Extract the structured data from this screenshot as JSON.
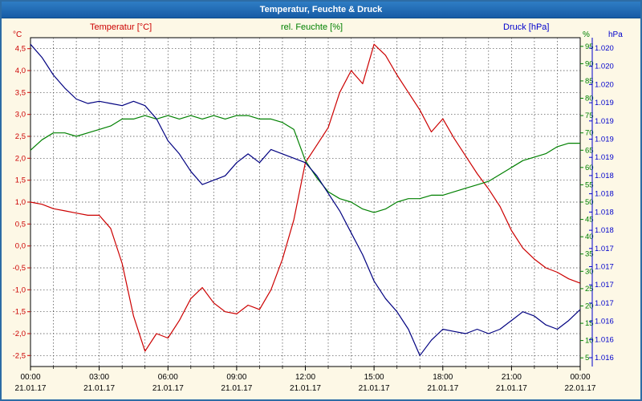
{
  "window": {
    "title": "Temperatur, Feuchte & Druck"
  },
  "legend": {
    "temp": "Temperatur [°C]",
    "hum": "rel. Feuchte [%]",
    "press": "Druck [hPa]"
  },
  "colors": {
    "titlebar": "#1e6cb5",
    "background": "#fdf8e6",
    "border": "#2d6ca5",
    "temp": "#cc0000",
    "hum": "#008000",
    "press": "#000080"
  },
  "chart_data": {
    "type": "line",
    "title": "Temperatur, Feuchte & Druck",
    "legend_position": "top",
    "grid": {
      "horizontal": true,
      "vertical_every_hours": 1,
      "style": "dashed"
    },
    "x_hours": [
      0,
      0.5,
      1,
      1.5,
      2,
      2.5,
      3,
      3.5,
      4,
      4.5,
      5,
      5.5,
      6,
      6.5,
      7,
      7.5,
      8,
      8.5,
      9,
      9.5,
      10,
      10.5,
      11,
      11.5,
      12,
      12.5,
      13,
      13.5,
      14,
      14.5,
      15,
      15.5,
      16,
      16.5,
      17,
      17.5,
      18,
      18.5,
      19,
      19.5,
      20,
      20.5,
      21,
      21.5,
      22,
      22.5,
      23,
      23.5,
      24
    ],
    "x_tick_labels": [
      "00:00",
      "03:00",
      "06:00",
      "09:00",
      "12:00",
      "15:00",
      "18:00",
      "21:00",
      "00:00"
    ],
    "x_tick_dates": [
      "21.01.17",
      "21.01.17",
      "21.01.17",
      "21.01.17",
      "21.01.17",
      "21.01.17",
      "21.01.17",
      "21.01.17",
      "22.01.17"
    ],
    "axes": {
      "temp": {
        "label": "Temperatur [°C]",
        "unit": "°C",
        "color": "#cc0000",
        "min": -2.75,
        "max": 4.75,
        "tick_values": [
          4.5,
          4.0,
          3.5,
          3.0,
          2.5,
          2.0,
          1.5,
          1.0,
          0.5,
          0.0,
          -0.5,
          -1.0,
          -1.5,
          -2.0,
          -2.5
        ],
        "tick_labels": [
          "4,5",
          "4,0",
          "3,5",
          "3,0",
          "2,5",
          "2,0",
          "1,5",
          "1,0",
          "0,5",
          "0,0",
          "-0,5",
          "-1,0",
          "-1,5",
          "-2,0",
          "-2,5"
        ]
      },
      "hum": {
        "label": "rel. Feuchte [%]",
        "unit": "%",
        "color": "#008000",
        "min": 2.5,
        "max": 97.5,
        "tick_values": [
          95,
          90,
          85,
          80,
          75,
          70,
          65,
          60,
          55,
          50,
          45,
          40,
          35,
          30,
          25,
          20,
          15,
          10,
          5
        ],
        "tick_labels": [
          "95",
          "90",
          "85",
          "80",
          "75",
          "70",
          "65",
          "60",
          "55",
          "50",
          "45",
          "40",
          "35",
          "30",
          "25",
          "20",
          "15",
          "10",
          "5"
        ]
      },
      "press": {
        "label": "Druck [hPa]",
        "unit": "hPa",
        "color": "#0000cc",
        "min": 1.016,
        "max": 1.0205,
        "tick_labels": [
          "1.020",
          "1.020",
          "1.020",
          "1.019",
          "1.019",
          "1.019",
          "1.019",
          "1.018",
          "1.018",
          "1.018",
          "1.018",
          "1.017",
          "1.017",
          "1.017",
          "1.017",
          "1.016",
          "1.016",
          "1.016"
        ]
      }
    },
    "series": [
      {
        "key": "temperature",
        "name": "Temperatur [°C]",
        "axis": "temp",
        "color": "#cc0000",
        "values": [
          1.0,
          0.95,
          0.85,
          0.8,
          0.75,
          0.7,
          0.7,
          0.4,
          -0.4,
          -1.6,
          -2.4,
          -2.0,
          -2.1,
          -1.7,
          -1.2,
          -0.95,
          -1.3,
          -1.5,
          -1.55,
          -1.35,
          -1.45,
          -1.0,
          -0.3,
          0.6,
          1.9,
          2.3,
          2.7,
          3.5,
          4.0,
          3.7,
          4.6,
          4.35,
          3.9,
          3.5,
          3.1,
          2.6,
          2.9,
          2.45,
          2.05,
          1.65,
          1.3,
          0.9,
          0.35,
          -0.05,
          -0.3,
          -0.5,
          -0.6,
          -0.75,
          -0.85
        ]
      },
      {
        "key": "humidity",
        "name": "rel. Feuchte [%]",
        "axis": "hum",
        "color": "#008000",
        "values": [
          65,
          68,
          70,
          70,
          69,
          70,
          71,
          72,
          74,
          74,
          75,
          74,
          75,
          74,
          75,
          74,
          75,
          74,
          75,
          75,
          74,
          74,
          73,
          71,
          62,
          57,
          53,
          51,
          50,
          48,
          47,
          48,
          50,
          51,
          51,
          52,
          52,
          53,
          54,
          55,
          56,
          58,
          60,
          62,
          63,
          64,
          66,
          67,
          67
        ]
      },
      {
        "key": "pressure",
        "name": "Druck [hPa]",
        "axis": "press",
        "color": "#000080",
        "values": [
          1.02041,
          1.02023,
          1.01999,
          1.01981,
          1.01966,
          1.0196,
          1.01963,
          1.0196,
          1.01957,
          1.01963,
          1.01957,
          1.01939,
          1.01909,
          1.01891,
          1.01867,
          1.01849,
          1.01855,
          1.01861,
          1.01879,
          1.01891,
          1.01879,
          1.01897,
          1.01891,
          1.01885,
          1.01879,
          1.01861,
          1.01837,
          1.01813,
          1.01783,
          1.01753,
          1.01717,
          1.01693,
          1.01675,
          1.01651,
          1.01615,
          1.01636,
          1.01651,
          1.01648,
          1.01645,
          1.01651,
          1.01645,
          1.01651,
          1.01663,
          1.01675,
          1.01669,
          1.01657,
          1.01651,
          1.01663,
          1.01678
        ]
      }
    ]
  }
}
